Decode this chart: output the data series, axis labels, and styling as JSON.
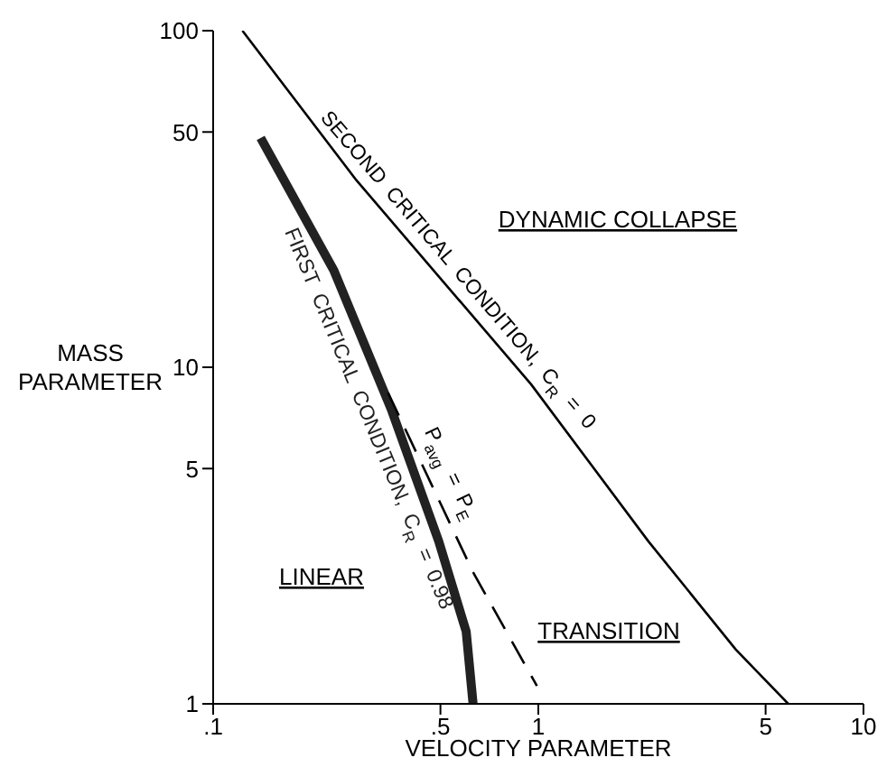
{
  "chart_data": {
    "type": "line",
    "xlabel": "VELOCITY PARAMETER",
    "ylabel": "MASS PARAMETER",
    "log": "xy",
    "marker": "none",
    "xlim": [
      0.1,
      10
    ],
    "ylim": [
      1,
      100
    ],
    "xticks": [
      {
        "value": 0.1,
        "label": ".1"
      },
      {
        "value": 0.5,
        "label": ".5"
      },
      1,
      5,
      10
    ],
    "yticks": [
      1,
      5,
      10,
      50,
      100
    ],
    "series": [
      {
        "name": "SECOND CRITICAL CONDITION, C$_{R}$ = 0",
        "color": "#000000",
        "line_style": "solid",
        "x": [
          0.123,
          0.276,
          0.95,
          2.18,
          4.05,
          5.87
        ],
        "values": [
          100,
          35.9,
          8.9,
          3.04,
          1.45,
          1
        ]
      },
      {
        "name": "FIRST CRITICAL CONDITION, C$_{R}$ = 0.98",
        "color": "#222222",
        "line_style": "solid",
        "x": [
          0.14,
          0.235,
          0.353,
          0.494,
          0.6,
          0.63
        ],
        "values": [
          48,
          19.4,
          7.5,
          3.04,
          1.64,
          1
        ]
      },
      {
        "name": "P$_{avg}$ = P$_{E}$",
        "color": "#000000",
        "line_style": "dashed",
        "x": [
          0.345,
          0.63,
          0.99
        ],
        "values": [
          8.4,
          2.46,
          1.13
        ]
      }
    ],
    "annotations": [
      "DYNAMIC COLLAPSE",
      "LINEAR",
      "TRANSITION"
    ]
  }
}
